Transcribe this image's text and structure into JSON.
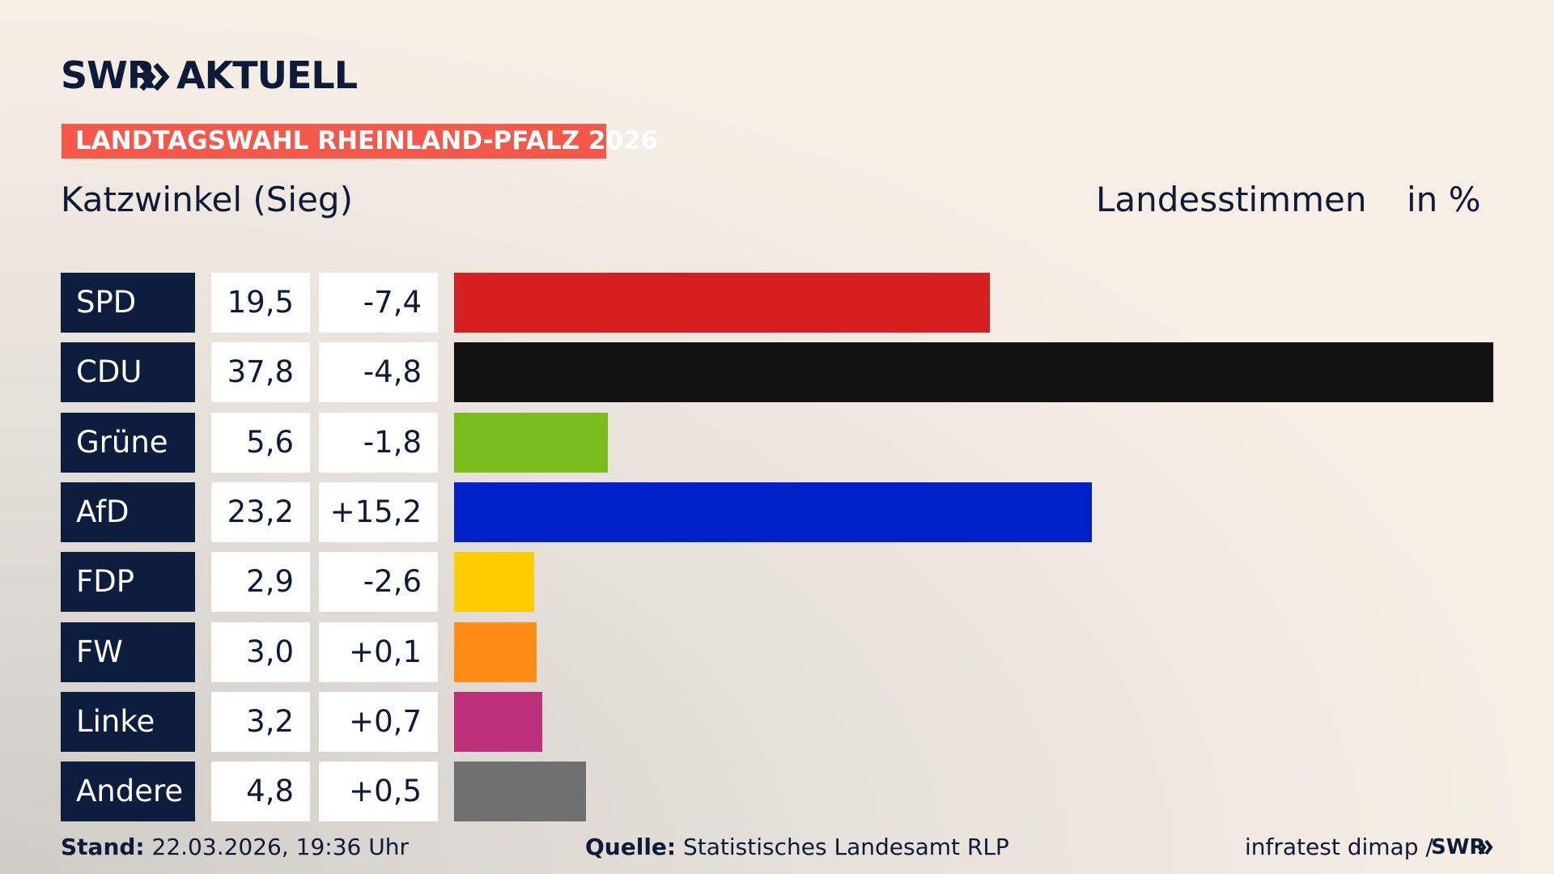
{
  "brand": {
    "name": "SWR",
    "product": "AKTUELL"
  },
  "tag": "LANDTAGSWAHL RHEINLAND-PFALZ 2026",
  "chart_data": {
    "type": "bar",
    "title": "Katzwinkel (Sieg)",
    "subtitle": "Landesstimmen",
    "unit": "in %",
    "categories": [
      "SPD",
      "CDU",
      "Grüne",
      "AfD",
      "FDP",
      "FW",
      "Linke",
      "Andere"
    ],
    "values": [
      19.5,
      37.8,
      5.6,
      23.2,
      2.9,
      3.0,
      3.2,
      4.8
    ],
    "value_labels": [
      "19,5",
      "37,8",
      "5,6",
      "23,2",
      "2,9",
      "3,0",
      "3,2",
      "4,8"
    ],
    "changes": [
      -7.4,
      -4.8,
      -1.8,
      15.2,
      -2.6,
      0.1,
      0.7,
      0.5
    ],
    "change_labels": [
      "-7,4",
      "-4,8",
      "-1,8",
      "+15,2",
      "-2,6",
      "+0,1",
      "+0,7",
      "+0,5"
    ],
    "colors": [
      "#d61f1f",
      "#121212",
      "#78bc1e",
      "#0020c8",
      "#ffcc00",
      "#ff8c17",
      "#be2f7a",
      "#707070"
    ]
  },
  "footer": {
    "stand_label": "Stand:",
    "stand": "22.03.2026, 19:36 Uhr",
    "source_label": "Quelle:",
    "source": "Statistisches Landesamt RLP",
    "credit": "infratest dimap /",
    "credit_brand": "SWR"
  }
}
